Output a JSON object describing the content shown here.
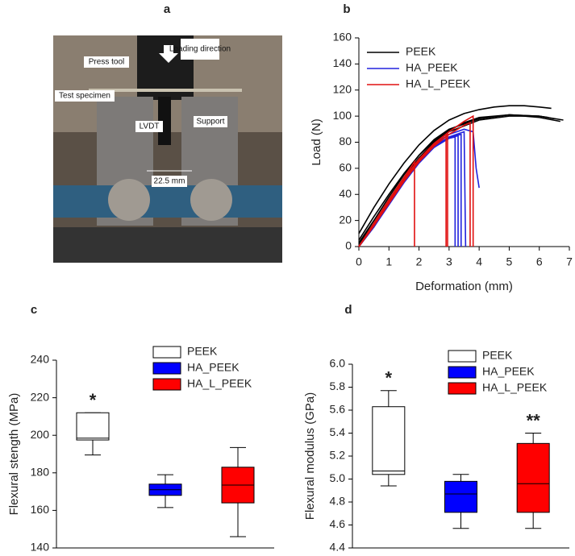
{
  "photo": {
    "panel_label": "a",
    "labels": [
      "Loading direction",
      "Press tool",
      "Test specimen",
      "LVDT",
      "Support",
      "22.5 mm"
    ]
  },
  "chart_data": [
    {
      "type": "line",
      "panel_label": "b",
      "x_label": "Deformation (mm)",
      "y_label": "Load (N)",
      "xlim": [
        0,
        7
      ],
      "xticks": [
        0,
        1,
        2,
        3,
        4,
        5,
        6,
        7
      ],
      "ylim": [
        0,
        160
      ],
      "yticks": [
        0,
        20,
        40,
        60,
        80,
        100,
        120,
        140,
        160
      ],
      "legend": "upper left",
      "series": [
        {
          "name": "PEEK",
          "color": "#000000",
          "curves": [
            {
              "x": [
                0,
                0.5,
                1,
                1.5,
                2,
                2.5,
                3,
                3.5,
                4,
                4.5,
                5,
                5.5,
                6,
                6.4
              ],
              "values": [
                10,
                30,
                48,
                64,
                78,
                89,
                97,
                102,
                105,
                107,
                108,
                108,
                107,
                106
              ]
            },
            {
              "x": [
                0,
                0.5,
                1,
                1.5,
                2,
                2.5,
                3,
                3.5,
                4,
                5,
                6,
                6.7
              ],
              "values": [
                5,
                23,
                40,
                56,
                70,
                81,
                89,
                95,
                98,
                101,
                99,
                96
              ]
            },
            {
              "x": [
                0,
                0.5,
                1,
                1.5,
                2,
                2.5,
                3,
                3.5,
                4,
                5,
                6,
                6.8
              ],
              "values": [
                2,
                18,
                36,
                53,
                68,
                80,
                89,
                95,
                99,
                101,
                100,
                97
              ]
            },
            {
              "x": [
                0,
                0.5,
                1,
                1.5,
                2,
                2.5,
                3,
                4,
                5,
                6,
                6.5
              ],
              "values": [
                0,
                15,
                33,
                50,
                66,
                79,
                88,
                97,
                100,
                100,
                98
              ]
            },
            {
              "x": [
                0,
                0.5,
                1,
                1.5,
                2,
                2.5,
                3,
                4,
                5,
                6,
                6.3
              ],
              "values": [
                3,
                20,
                38,
                55,
                70,
                82,
                90,
                98,
                101,
                100,
                99
              ]
            }
          ]
        },
        {
          "name": "HA_PEEK",
          "color": "#2222dd",
          "curves": [
            {
              "x": [
                0,
                0.5,
                1,
                1.5,
                2,
                2.5,
                3,
                3.5,
                3.8,
                3.9,
                4.0
              ],
              "values": [
                0,
                16,
                34,
                52,
                67,
                78,
                86,
                90,
                88,
                60,
                45
              ]
            },
            {
              "x": [
                0,
                0.5,
                1,
                1.5,
                2,
                2.5,
                3,
                3.3,
                3.3
              ],
              "values": [
                0,
                15,
                33,
                50,
                65,
                76,
                83,
                85,
                0
              ]
            },
            {
              "x": [
                0,
                0.5,
                1,
                1.5,
                2,
                2.5,
                3,
                3.4,
                3.4
              ],
              "values": [
                0,
                17,
                35,
                52,
                66,
                77,
                84,
                86,
                0
              ]
            },
            {
              "x": [
                0,
                0.5,
                1,
                1.5,
                2,
                2.5,
                3,
                3.5,
                3.55
              ],
              "values": [
                0,
                15,
                32,
                49,
                64,
                76,
                84,
                88,
                0
              ]
            },
            {
              "x": [
                0,
                0.5,
                1,
                1.5,
                2,
                2.5,
                3,
                3.2,
                3.2
              ],
              "values": [
                0,
                16,
                34,
                51,
                66,
                77,
                83,
                84,
                0
              ]
            }
          ]
        },
        {
          "name": "HA_L_PEEK",
          "color": "#e01010",
          "curves": [
            {
              "x": [
                0,
                0.5,
                1,
                1.5,
                1.85,
                1.85
              ],
              "values": [
                0,
                18,
                36,
                53,
                65,
                0
              ]
            },
            {
              "x": [
                0,
                0.5,
                1,
                1.5,
                2,
                2.5,
                2.9,
                2.9
              ],
              "values": [
                0,
                17,
                35,
                52,
                67,
                79,
                86,
                0
              ]
            },
            {
              "x": [
                0,
                0.5,
                1,
                1.5,
                2,
                2.5,
                2.95,
                2.95
              ],
              "values": [
                0,
                16,
                34,
                51,
                66,
                78,
                87,
                0
              ]
            },
            {
              "x": [
                0,
                0.5,
                1,
                1.5,
                2,
                2.5,
                3,
                3.5,
                3.7,
                3.7
              ],
              "values": [
                0,
                16,
                33,
                50,
                65,
                77,
                86,
                93,
                95,
                0
              ]
            },
            {
              "x": [
                0,
                0.5,
                1,
                1.5,
                2,
                2.5,
                3,
                3.5,
                3.8,
                3.8
              ],
              "values": [
                0,
                17,
                35,
                52,
                67,
                79,
                88,
                96,
                100,
                0
              ]
            }
          ]
        }
      ]
    },
    {
      "type": "box",
      "panel_label": "c",
      "y_label": "Flexural stength (MPa)",
      "ylim": [
        140,
        240
      ],
      "yticks": [
        140,
        160,
        180,
        200,
        220,
        240
      ],
      "legend": "upper right",
      "annotations": [
        "*",
        null,
        null
      ],
      "series": [
        {
          "name": "PEEK",
          "color": "#ffffff",
          "min": 189.5,
          "q1": 197.5,
          "median": 198.5,
          "q3": 212,
          "max": 212
        },
        {
          "name": "HA_PEEK",
          "color": "#0000ff",
          "min": 161.5,
          "q1": 168,
          "median": 171,
          "q3": 174,
          "max": 179
        },
        {
          "name": "HA_L_PEEK",
          "color": "#ff0000",
          "min": 146,
          "q1": 164,
          "median": 173.5,
          "q3": 183,
          "max": 193.5
        }
      ]
    },
    {
      "type": "box",
      "panel_label": "d",
      "y_label": "Flexural modulus (GPa)",
      "ylim": [
        4.4,
        6.0
      ],
      "yticks": [
        4.4,
        4.6,
        4.8,
        {
          "value": 5,
          "label": "5.0"
        },
        5.2,
        5.4,
        5.6,
        5.8,
        {
          "value": 6,
          "label": "6.0"
        }
      ],
      "legend": "upper right",
      "annotations": [
        "*",
        null,
        "**"
      ],
      "series": [
        {
          "name": "PEEK",
          "color": "#ffffff",
          "min": 4.94,
          "q1": 5.04,
          "median": 5.07,
          "q3": 5.63,
          "max": 5.77
        },
        {
          "name": "HA_PEEK",
          "color": "#0000ff",
          "min": 4.57,
          "q1": 4.71,
          "median": 4.87,
          "q3": 4.98,
          "max": 5.04
        },
        {
          "name": "HA_L_PEEK",
          "color": "#ff0000",
          "min": 4.57,
          "q1": 4.71,
          "median": 4.96,
          "q3": 5.31,
          "max": 5.4
        }
      ]
    }
  ]
}
